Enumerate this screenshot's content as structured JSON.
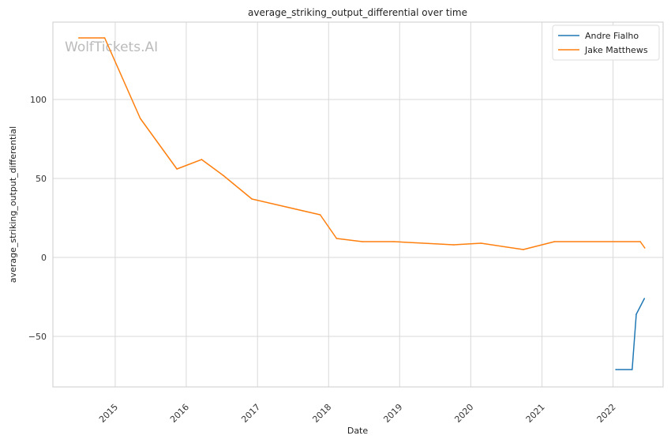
{
  "chart_data": {
    "type": "line",
    "title": "average_striking_output_differential over time",
    "xlabel": "Date",
    "ylabel": "average_striking_output_differential",
    "watermark": "WolfTickets.AI",
    "x_ticks": [
      "2015",
      "2016",
      "2017",
      "2018",
      "2019",
      "2020",
      "2021",
      "2022"
    ],
    "y_ticks": [
      -50,
      0,
      50,
      100
    ],
    "ylim": [
      -82,
      149
    ],
    "xlim": [
      "2014-02-15",
      "2022-09-15"
    ],
    "grid": true,
    "legend_position": "top-right",
    "series": [
      {
        "name": "Andre Fialho",
        "color": "#1f77b4",
        "points": [
          {
            "x": "2022-01-15",
            "y": -71
          },
          {
            "x": "2022-04-09",
            "y": -71
          },
          {
            "x": "2022-04-30",
            "y": -36
          },
          {
            "x": "2022-06-11",
            "y": -26
          }
        ]
      },
      {
        "name": "Jake Matthews",
        "color": "#ff7f0e",
        "points": [
          {
            "x": "2014-06-28",
            "y": 139
          },
          {
            "x": "2014-11-08",
            "y": 139
          },
          {
            "x": "2015-05-10",
            "y": 88
          },
          {
            "x": "2015-11-14",
            "y": 56
          },
          {
            "x": "2016-03-20",
            "y": 62
          },
          {
            "x": "2016-07-08",
            "y": 52
          },
          {
            "x": "2016-12-03",
            "y": 37
          },
          {
            "x": "2017-11-19",
            "y": 27
          },
          {
            "x": "2018-02-11",
            "y": 12
          },
          {
            "x": "2018-06-23",
            "y": 10
          },
          {
            "x": "2018-12-02",
            "y": 10
          },
          {
            "x": "2019-10-05",
            "y": 8
          },
          {
            "x": "2020-02-23",
            "y": 9
          },
          {
            "x": "2020-09-27",
            "y": 5
          },
          {
            "x": "2021-03-06",
            "y": 10
          },
          {
            "x": "2022-05-21",
            "y": 10
          },
          {
            "x": "2022-06-13",
            "y": 6
          }
        ]
      }
    ]
  }
}
